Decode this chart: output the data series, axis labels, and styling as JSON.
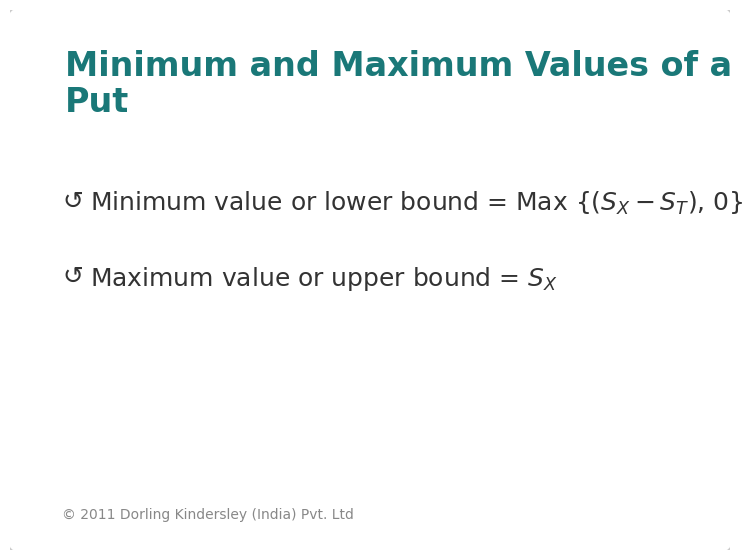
{
  "title_line1": "Minimum and Maximum Values of a",
  "title_line2": "Put",
  "title_color": "#1a7878",
  "bg_color": "#ffffff",
  "border_color": "#cccccc",
  "bullet1_text": "Minimum value or lower bound = Max {($S_X - S_T$), 0}",
  "bullet2_text": "Maximum value or upper bound = $S_X$",
  "bullet_char": "↪",
  "footer": "© 2011 Dorling Kindersley (India) Pvt. Ltd",
  "footer_color": "#888888",
  "text_color": "#333333",
  "title_fontsize": 24,
  "body_fontsize": 18,
  "footer_fontsize": 10
}
